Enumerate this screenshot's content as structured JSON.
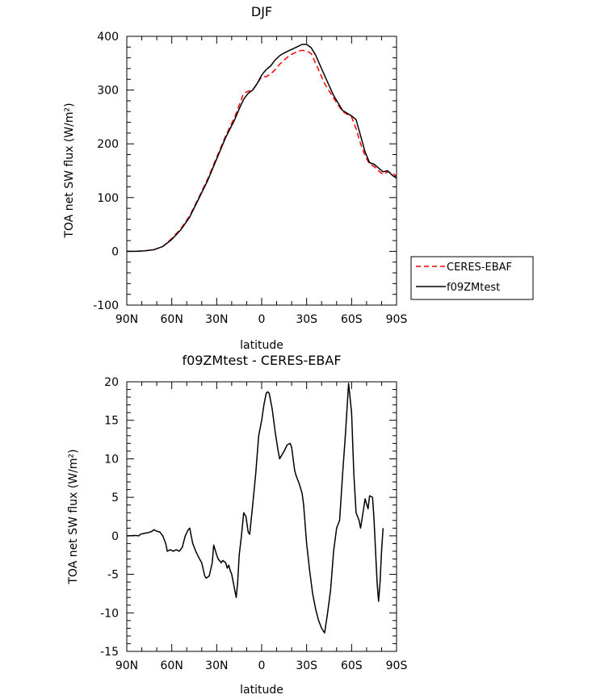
{
  "chart_data": [
    {
      "type": "line",
      "title": "DJF",
      "xlabel": "latitude",
      "ylabel": "TOA net SW flux (W/m²)",
      "ylim": [
        -100,
        400
      ],
      "yticks": [
        -100,
        0,
        100,
        200,
        300,
        400
      ],
      "xlim": [
        90,
        -90
      ],
      "xticks": [
        90,
        60,
        30,
        0,
        -30,
        -60,
        -90
      ],
      "xtick_labels": [
        "90N",
        "60N",
        "30N",
        "0",
        "30S",
        "60S",
        "90S"
      ],
      "legend": "right",
      "series": [
        {
          "name": "CERES-EBAF",
          "color": "#ff0000",
          "dash": "dashed",
          "points": [
            [
              90,
              0
            ],
            [
              84,
              0
            ],
            [
              78,
              1
            ],
            [
              72,
              3
            ],
            [
              66,
              9
            ],
            [
              60,
              24
            ],
            [
              54,
              42
            ],
            [
              48,
              66
            ],
            [
              42,
              100
            ],
            [
              36,
              135
            ],
            [
              30,
              175
            ],
            [
              24,
              215
            ],
            [
              18,
              250
            ],
            [
              15,
              272
            ],
            [
              12,
              294
            ],
            [
              9,
              298
            ],
            [
              6,
              300
            ],
            [
              3,
              312
            ],
            [
              0,
              325
            ],
            [
              -3,
              325
            ],
            [
              -6,
              330
            ],
            [
              -9,
              338
            ],
            [
              -12,
              348
            ],
            [
              -15,
              356
            ],
            [
              -18,
              363
            ],
            [
              -21,
              368
            ],
            [
              -24,
              372
            ],
            [
              -27,
              374
            ],
            [
              -30,
              373
            ],
            [
              -33,
              368
            ],
            [
              -36,
              350
            ],
            [
              -42,
              312
            ],
            [
              -48,
              285
            ],
            [
              -54,
              260
            ],
            [
              -60,
              250
            ],
            [
              -63,
              228
            ],
            [
              -66,
              200
            ],
            [
              -69,
              178
            ],
            [
              -72,
              162
            ],
            [
              -75,
              158
            ],
            [
              -78,
              150
            ],
            [
              -81,
              143
            ],
            [
              -84,
              148
            ],
            [
              -87,
              146
            ],
            [
              -90,
              140
            ]
          ]
        },
        {
          "name": "f09ZMtest",
          "color": "#000000",
          "dash": "solid",
          "points": [
            [
              90,
              0
            ],
            [
              84,
              0
            ],
            [
              78,
              1
            ],
            [
              72,
              3
            ],
            [
              66,
              9
            ],
            [
              60,
              22
            ],
            [
              54,
              40
            ],
            [
              48,
              64
            ],
            [
              42,
              98
            ],
            [
              36,
              132
            ],
            [
              30,
              172
            ],
            [
              24,
              212
            ],
            [
              18,
              245
            ],
            [
              15,
              265
            ],
            [
              12,
              283
            ],
            [
              9,
              294
            ],
            [
              6,
              300
            ],
            [
              3,
              312
            ],
            [
              0,
              328
            ],
            [
              -3,
              338
            ],
            [
              -6,
              345
            ],
            [
              -9,
              356
            ],
            [
              -12,
              364
            ],
            [
              -15,
              369
            ],
            [
              -18,
              373
            ],
            [
              -21,
              377
            ],
            [
              -24,
              381
            ],
            [
              -27,
              385
            ],
            [
              -30,
              385
            ],
            [
              -33,
              379
            ],
            [
              -36,
              365
            ],
            [
              -42,
              327
            ],
            [
              -48,
              290
            ],
            [
              -54,
              262
            ],
            [
              -60,
              252
            ],
            [
              -63,
              245
            ],
            [
              -66,
              215
            ],
            [
              -69,
              185
            ],
            [
              -72,
              165
            ],
            [
              -75,
              162
            ],
            [
              -78,
              155
            ],
            [
              -81,
              148
            ],
            [
              -84,
              150
            ],
            [
              -87,
              142
            ],
            [
              -90,
              136
            ]
          ]
        }
      ]
    },
    {
      "type": "line",
      "title": "f09ZMtest - CERES-EBAF",
      "xlabel": "latitude",
      "ylabel": "TOA net SW flux (W/m²)",
      "ylim": [
        -15,
        20
      ],
      "yticks": [
        -15,
        -10,
        -5,
        0,
        5,
        10,
        15,
        20
      ],
      "xlim": [
        90,
        -90
      ],
      "xticks": [
        90,
        60,
        30,
        0,
        -30,
        -60,
        -90
      ],
      "xtick_labels": [
        "90N",
        "60N",
        "30N",
        "0",
        "30S",
        "60S",
        "90S"
      ],
      "series": [
        {
          "color": "#000000",
          "points": [
            [
              90,
              0
            ],
            [
              84,
              0.05
            ],
            [
              82,
              0
            ],
            [
              81,
              0.2
            ],
            [
              79,
              0.3
            ],
            [
              76,
              0.4
            ],
            [
              73,
              0.6
            ],
            [
              72,
              0.8
            ],
            [
              70,
              0.6
            ],
            [
              68,
              0.5
            ],
            [
              66,
              0
            ],
            [
              64,
              -1
            ],
            [
              63,
              -2
            ],
            [
              61,
              -1.8
            ],
            [
              59,
              -2
            ],
            [
              57,
              -1.8
            ],
            [
              55,
              -2
            ],
            [
              53,
              -1.5
            ],
            [
              51,
              0
            ],
            [
              49,
              0.8
            ],
            [
              48,
              1
            ],
            [
              46,
              -1
            ],
            [
              44,
              -2
            ],
            [
              42,
              -2.8
            ],
            [
              40,
              -3.5
            ],
            [
              38,
              -5.2
            ],
            [
              37,
              -5.5
            ],
            [
              35,
              -5.2
            ],
            [
              33,
              -3.5
            ],
            [
              32,
              -1.2
            ],
            [
              30,
              -2.5
            ],
            [
              29,
              -3
            ],
            [
              27,
              -3.5
            ],
            [
              26,
              -3.2
            ],
            [
              24,
              -3.5
            ],
            [
              23,
              -4.2
            ],
            [
              22,
              -3.8
            ],
            [
              21,
              -4.5
            ],
            [
              20,
              -5
            ],
            [
              18,
              -7
            ],
            [
              17,
              -8
            ],
            [
              16,
              -6
            ],
            [
              15,
              -2.5
            ],
            [
              13.5,
              0
            ],
            [
              12,
              3
            ],
            [
              10.5,
              2.5
            ],
            [
              9,
              0.5
            ],
            [
              8,
              0.2
            ],
            [
              6,
              4
            ],
            [
              4,
              8
            ],
            [
              2,
              13
            ],
            [
              0,
              15
            ],
            [
              -1.5,
              17
            ],
            [
              -3,
              18.5
            ],
            [
              -4,
              18.7
            ],
            [
              -5,
              18.5
            ],
            [
              -7,
              16.5
            ],
            [
              -9,
              13.5
            ],
            [
              -11,
              11
            ],
            [
              -12,
              10
            ],
            [
              -13.5,
              10.5
            ],
            [
              -15,
              11
            ],
            [
              -17,
              11.8
            ],
            [
              -19,
              12
            ],
            [
              -20,
              11.5
            ],
            [
              -21,
              10
            ],
            [
              -22,
              8.5
            ],
            [
              -23,
              7.8
            ],
            [
              -25,
              6.8
            ],
            [
              -27,
              5.5
            ],
            [
              -28,
              4
            ],
            [
              -30,
              -1
            ],
            [
              -32,
              -4.5
            ],
            [
              -34,
              -7.5
            ],
            [
              -36,
              -9.5
            ],
            [
              -38,
              -11
            ],
            [
              -40,
              -12
            ],
            [
              -42,
              -12.6
            ],
            [
              -44,
              -10
            ],
            [
              -46,
              -7
            ],
            [
              -48,
              -2
            ],
            [
              -50,
              1
            ],
            [
              -52,
              2
            ],
            [
              -54,
              8
            ],
            [
              -56,
              13.5
            ],
            [
              -58,
              19.8
            ],
            [
              -60,
              16
            ],
            [
              -61.5,
              8
            ],
            [
              -63,
              3
            ],
            [
              -64,
              2.5
            ],
            [
              -65,
              2
            ],
            [
              -66,
              1
            ],
            [
              -68,
              3.5
            ],
            [
              -69,
              4.8
            ],
            [
              -71,
              3.5
            ],
            [
              -72,
              5.2
            ],
            [
              -74,
              5
            ],
            [
              -75,
              2
            ],
            [
              -76,
              -2
            ],
            [
              -77,
              -6
            ],
            [
              -78,
              -8.5
            ],
            [
              -79,
              -6
            ],
            [
              -80,
              -2
            ],
            [
              -81,
              1
            ]
          ]
        }
      ]
    }
  ]
}
